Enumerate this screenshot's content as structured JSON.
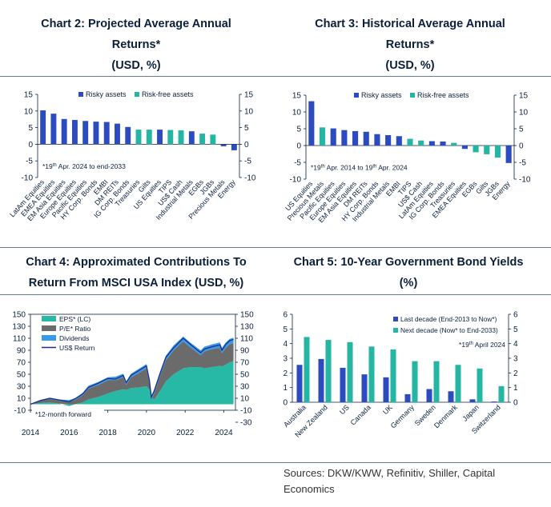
{
  "titles": {
    "c2": [
      "Chart 2: Projected Average Annual",
      "Returns*",
      "(USD, %)"
    ],
    "c3": [
      "Chart 3: Historical Average Annual",
      "Returns*",
      "(USD, %)"
    ],
    "c4": [
      "Chart 4: Approximated Contributions To",
      "Return From MSCI USA Index (USD, %)"
    ],
    "c5": [
      "Chart 5: 10-Year Government Bond Yields",
      "(%)"
    ]
  },
  "sources": "Sources: DKW/KWW, Refinitiv, Shiller, Capital Economics",
  "colors": {
    "risky": "#2b4bbf",
    "riskfree": "#25b5a3",
    "eps": "#27b8a6",
    "pe": "#6b6b6b",
    "div": "#3a9ae8",
    "usd": "#1a2e8a"
  },
  "chart_data": [
    {
      "id": "chart2",
      "type": "bar",
      "title": "Chart 2: Projected Average Annual Returns* (USD, %)",
      "categories": [
        "LatAm Equities",
        "EMEA Equities",
        "EM Asia Equities",
        "Europe Equities",
        "Pacific Equities",
        "HY Corp. Bonds",
        "EMBI",
        "DM REITs",
        "IG Corp. Bonds",
        "Treasuries",
        "Gilts",
        "US Equities",
        "TIPS",
        "US$ Cash",
        "Industrial Metals",
        "EGBs",
        "JGBs",
        "Precious Metals",
        "Energy"
      ],
      "values": [
        10.2,
        9.2,
        7.6,
        7.3,
        7.0,
        6.8,
        6.7,
        6.2,
        5.2,
        4.4,
        4.4,
        4.4,
        4.3,
        4.2,
        3.9,
        3.2,
        2.9,
        -0.6,
        -1.8
      ],
      "series_type": [
        "risky",
        "risky",
        "risky",
        "risky",
        "risky",
        "risky",
        "risky",
        "risky",
        "risky",
        "riskfree",
        "riskfree",
        "risky",
        "riskfree",
        "riskfree",
        "risky",
        "riskfree",
        "riskfree",
        "risky",
        "risky"
      ],
      "legend": [
        "Risky assets",
        "Risk-free assets"
      ],
      "yticks": [
        "15",
        "10",
        "5",
        "0",
        "-5",
        "-10"
      ],
      "ylim": [
        -10,
        15
      ],
      "note": "*19",
      "note_sup": "th",
      "note_rest": " Apr. 2024 to end-2033"
    },
    {
      "id": "chart3",
      "type": "bar",
      "title": "Chart 3: Historical Average Annual Returns* (USD, %)",
      "categories": [
        "US Equities",
        "Precious Metals",
        "Pacific Equities",
        "Europe Equities",
        "EM Asia Equities",
        "DM REITs",
        "HY Corp. Bonds",
        "Industrial Metals",
        "EMBI",
        "TIPS",
        "US$ Cash",
        "LatAm Equities",
        "IG Corp. Bonds",
        "Treasuries",
        "EMEA Equities",
        "EGBs",
        "Gilts",
        "JGBs",
        "Energy"
      ],
      "values": [
        13.2,
        5.4,
        5.1,
        4.6,
        4.3,
        4.1,
        3.4,
        3.1,
        2.8,
        2.0,
        1.5,
        1.3,
        1.2,
        0.8,
        -1.0,
        -2.0,
        -2.6,
        -3.6,
        -5.2
      ],
      "series_type": [
        "risky",
        "riskfree",
        "risky",
        "risky",
        "risky",
        "risky",
        "risky",
        "risky",
        "risky",
        "riskfree",
        "riskfree",
        "risky",
        "risky",
        "riskfree",
        "risky",
        "riskfree",
        "riskfree",
        "riskfree",
        "risky"
      ],
      "legend": [
        "Risky assets",
        "Risk-free assets"
      ],
      "yticks": [
        "15",
        "10",
        "5",
        "0",
        "-5",
        "-10"
      ],
      "ylim": [
        -10,
        15
      ],
      "note": "*19",
      "note_sup": "th",
      "note_rest": " Apr. 2014 to 19",
      "note_sup2": "th",
      "note_rest2": " Apr. 2024"
    },
    {
      "id": "chart4",
      "type": "area",
      "title": "Chart 4: Approximated Contributions To Return From MSCI USA Index (USD, %)",
      "x_labels": [
        "2014",
        "2016",
        "2018",
        "2020",
        "2022",
        "2024"
      ],
      "xlim": [
        2014,
        2024.6
      ],
      "yticks_left": [
        "150",
        "130",
        "110",
        "90",
        "70",
        "50",
        "30",
        "10",
        "-10"
      ],
      "yticks_right": [
        "150",
        "130",
        "110",
        "90",
        "70",
        "50",
        "30",
        "10",
        "-10",
        "-30"
      ],
      "ylim": [
        -10,
        150
      ],
      "note": "*12-month forward",
      "legend": [
        "EPS* (LC)",
        "P/E* Ratio",
        "Dividends",
        "US$ Return"
      ],
      "x": [
        2014.0,
        2014.5,
        2015.0,
        2015.5,
        2016.0,
        2016.3,
        2016.7,
        2017.0,
        2017.5,
        2018.0,
        2018.4,
        2018.8,
        2018.95,
        2019.2,
        2019.6,
        2020.0,
        2020.15,
        2020.25,
        2020.4,
        2020.7,
        2021.0,
        2021.4,
        2021.9,
        2022.3,
        2022.8,
        2023.0,
        2023.4,
        2023.8,
        2023.9,
        2024.1,
        2024.3,
        2024.5
      ],
      "eps": [
        0,
        2,
        3,
        1,
        -3,
        0,
        3,
        8,
        12,
        18,
        22,
        25,
        24,
        27,
        28,
        30,
        25,
        12,
        8,
        22,
        38,
        50,
        60,
        62,
        62,
        60,
        62,
        64,
        63,
        66,
        70,
        72
      ],
      "pe": [
        0,
        4,
        6,
        5,
        4,
        7,
        12,
        18,
        20,
        22,
        18,
        20,
        8,
        18,
        24,
        30,
        10,
        -5,
        10,
        25,
        35,
        40,
        45,
        32,
        20,
        28,
        30,
        30,
        22,
        28,
        30,
        30
      ],
      "div": [
        0,
        1,
        2,
        2,
        3,
        3,
        4,
        5,
        5,
        5,
        6,
        6,
        6,
        6,
        7,
        7,
        7,
        7,
        7,
        7,
        8,
        8,
        8,
        8,
        8,
        8,
        8,
        9,
        9,
        9,
        9,
        9
      ],
      "usd": [
        0,
        6,
        10,
        7,
        4,
        9,
        17,
        28,
        35,
        43,
        42,
        48,
        36,
        48,
        56,
        64,
        40,
        12,
        22,
        51,
        78,
        94,
        110,
        99,
        86,
        92,
        96,
        99,
        90,
        100,
        106,
        108
      ]
    },
    {
      "id": "chart5",
      "type": "bar",
      "title": "Chart 5: 10-Year Government Bond Yields (%)",
      "categories": [
        "Australia",
        "New Zealand",
        "US",
        "Canada",
        "UK",
        "Germany",
        "Sweden",
        "Denmark",
        "Japan",
        "Switzerland"
      ],
      "series": [
        {
          "name": "Last decade (End-2013 to Now*)",
          "values": [
            2.55,
            2.95,
            2.35,
            1.9,
            1.7,
            0.55,
            0.9,
            0.75,
            0.2,
            0.05
          ]
        },
        {
          "name": "Next decade (Now* to End-2033)",
          "values": [
            4.45,
            4.25,
            4.1,
            3.8,
            3.6,
            2.8,
            2.8,
            2.55,
            2.3,
            1.1
          ]
        }
      ],
      "yticks": [
        "6",
        "5",
        "4",
        "3",
        "2",
        "1",
        "0"
      ],
      "ylim": [
        0,
        6
      ],
      "note": "*19",
      "note_sup": "th",
      "note_rest": " April 2024"
    }
  ]
}
